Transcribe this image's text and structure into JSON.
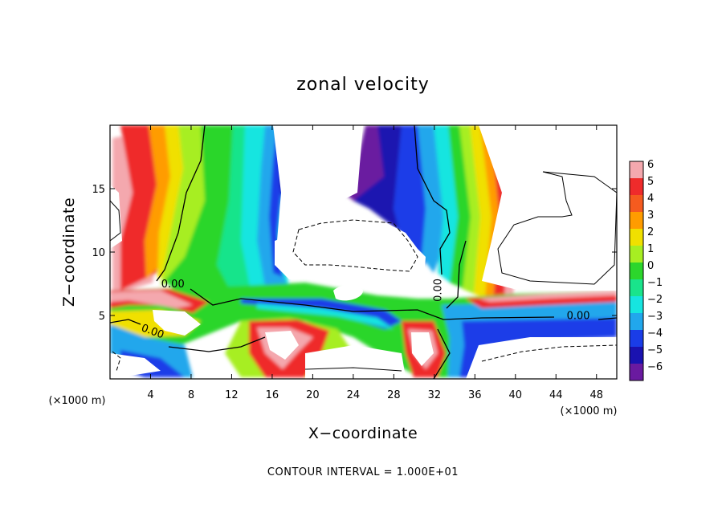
{
  "chart_data": {
    "type": "heatmap",
    "title": "zonal velocity",
    "xlabel": "X−coordinate",
    "ylabel": "Z−coordinate",
    "x_unit_left": "(×1000 m)",
    "x_unit_right": "(×1000 m)",
    "xlim": [
      0,
      50
    ],
    "ylim": [
      0,
      20
    ],
    "x_ticks": [
      4,
      8,
      12,
      16,
      20,
      24,
      28,
      32,
      36,
      40,
      44,
      48
    ],
    "y_ticks": [
      5,
      10,
      15
    ],
    "colorbar_ticks": [
      "6",
      "5",
      "4",
      "3",
      "2",
      "1",
      "0",
      "−1",
      "−2",
      "−3",
      "−4",
      "−5",
      "−6"
    ],
    "colorbar_values": [
      6,
      5,
      4,
      3,
      2,
      1,
      0,
      -1,
      -2,
      -3,
      -4,
      -5,
      -6
    ],
    "colorbar_colors": [
      "#f4a8ae",
      "#ef2b2b",
      "#f55b1f",
      "#ff9c00",
      "#f0e000",
      "#a7ee22",
      "#2cd62c",
      "#19e48b",
      "#16e5e0",
      "#21a7ec",
      "#1a3de8",
      "#1a12b0",
      "#6a1aa0"
    ],
    "contour_labels": [
      {
        "text": "0.00",
        "x": 6.2,
        "z": 7.2
      },
      {
        "text": "0.00",
        "x": 4.1,
        "z": 3.5
      },
      {
        "text": "0.00",
        "x": 32.7,
        "z": 7.0
      },
      {
        "text": "0.00",
        "x": 46.2,
        "z": 4.7
      }
    ],
    "contour_interval_text": "CONTOUR INTERVAL = 1.000E+01",
    "grid": false,
    "legend": "colorbar-right"
  }
}
